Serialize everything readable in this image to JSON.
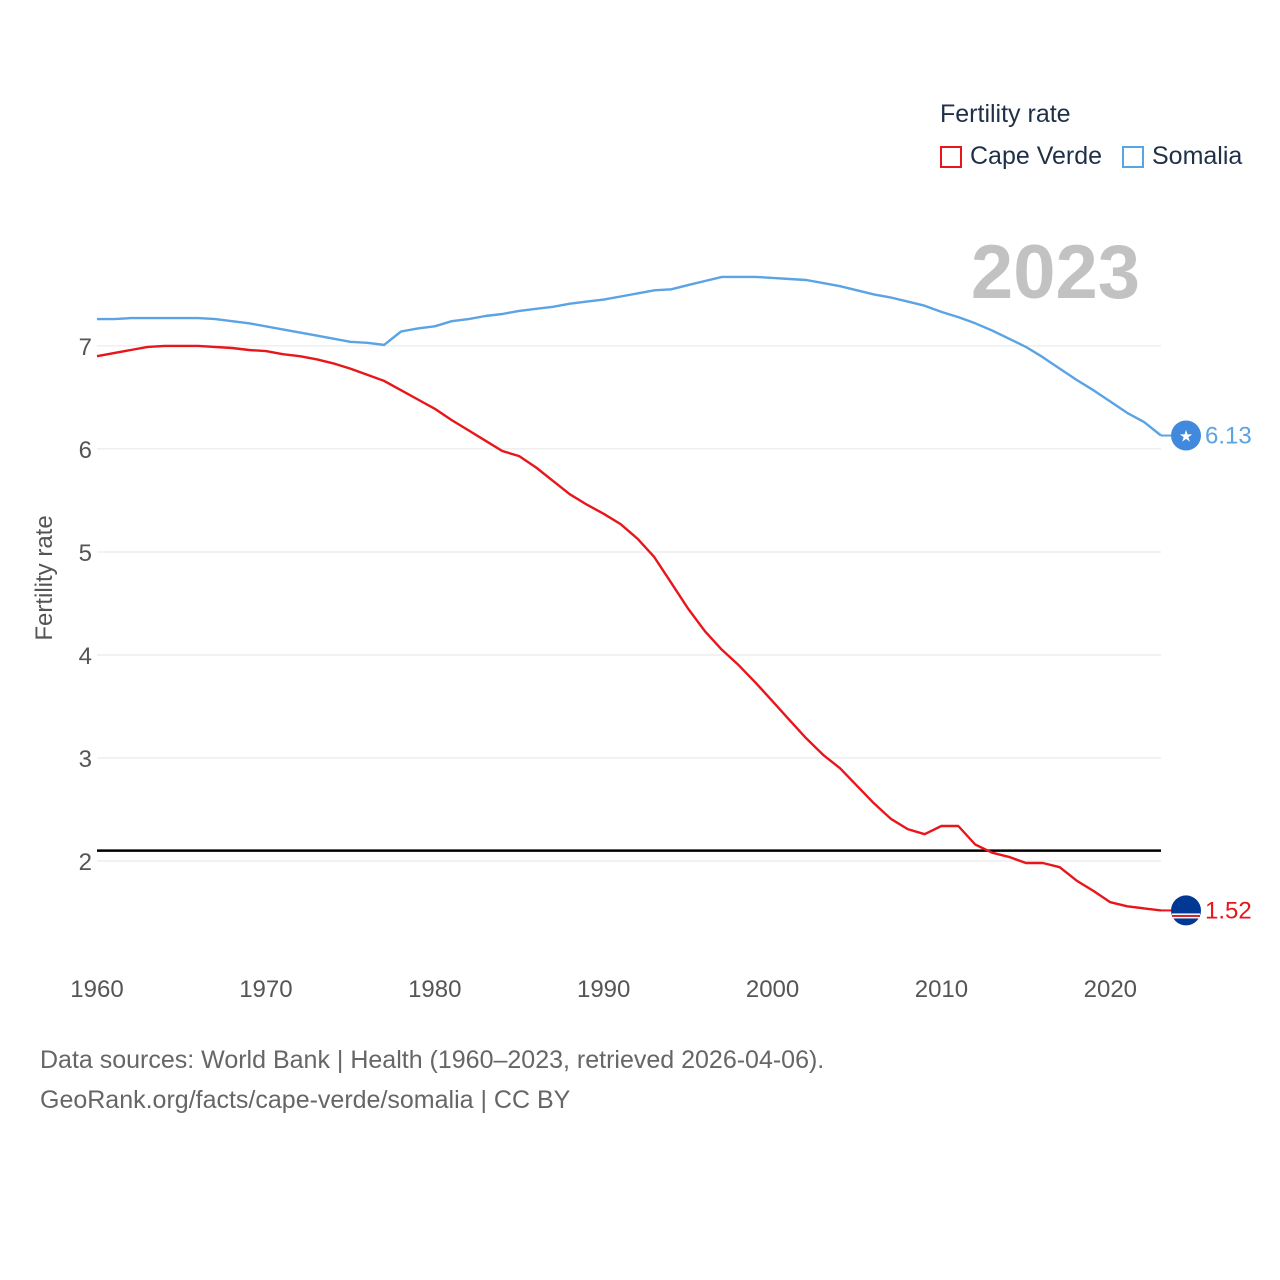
{
  "chart_data": {
    "type": "line",
    "ylabel": "Fertility rate",
    "year_label": "2023",
    "x_ticks": [
      1960,
      1970,
      1980,
      1990,
      2000,
      2010,
      2020
    ],
    "y_ticks": [
      2,
      3,
      4,
      5,
      6,
      7
    ],
    "xlim": [
      1960,
      2023
    ],
    "ylim": [
      1.0,
      8.3
    ],
    "reference_line": {
      "value": 2.1,
      "color": "#000000"
    },
    "legend": {
      "title": "Fertility rate",
      "placement": "top-right"
    },
    "series": [
      {
        "name": "Cape Verde",
        "color": "#e8161b",
        "end_label": "1.52",
        "x": [
          1960,
          1962,
          1963,
          1964,
          1966,
          1968,
          1969,
          1970,
          1971,
          1972,
          1973,
          1974,
          1975,
          1976,
          1977,
          1978,
          1979,
          1980,
          1981,
          1982,
          1983,
          1984,
          1985,
          1986,
          1987,
          1988,
          1989,
          1990,
          1991,
          1992,
          1993,
          1994,
          1995,
          1996,
          1997,
          1998,
          1999,
          2000,
          2001,
          2002,
          2003,
          2004,
          2005,
          2006,
          2007,
          2008,
          2009,
          2010,
          2011,
          2012,
          2013,
          2014,
          2015,
          2016,
          2017,
          2018,
          2019,
          2020,
          2021,
          2022,
          2023
        ],
        "y": [
          6.9,
          6.96,
          6.99,
          7.0,
          7.0,
          6.98,
          6.96,
          6.95,
          6.92,
          6.9,
          6.87,
          6.83,
          6.78,
          6.72,
          6.66,
          6.57,
          6.48,
          6.39,
          6.28,
          6.18,
          6.08,
          5.98,
          5.93,
          5.82,
          5.69,
          5.56,
          5.46,
          5.37,
          5.27,
          5.13,
          4.95,
          4.7,
          4.45,
          4.23,
          4.05,
          3.9,
          3.73,
          3.55,
          3.37,
          3.19,
          3.03,
          2.9,
          2.73,
          2.56,
          2.41,
          2.31,
          2.26,
          2.34,
          2.34,
          2.16,
          2.08,
          2.04,
          1.98,
          1.98,
          1.94,
          1.81,
          1.71,
          1.6,
          1.56,
          1.54,
          1.52
        ]
      },
      {
        "name": "Somalia",
        "color": "#5aa3e4",
        "end_label": "6.13",
        "x": [
          1960,
          1961,
          1962,
          1964,
          1966,
          1967,
          1969,
          1971,
          1973,
          1975,
          1976,
          1977,
          1978,
          1979,
          1980,
          1981,
          1982,
          1983,
          1984,
          1985,
          1986,
          1987,
          1988,
          1989,
          1990,
          1991,
          1992,
          1993,
          1994,
          1995,
          1996,
          1997,
          1998,
          1999,
          2000,
          2001,
          2002,
          2003,
          2004,
          2005,
          2006,
          2007,
          2008,
          2009,
          2010,
          2011,
          2012,
          2013,
          2014,
          2015,
          2016,
          2017,
          2018,
          2019,
          2020,
          2021,
          2022,
          2023
        ],
        "y": [
          7.26,
          7.26,
          7.27,
          7.27,
          7.27,
          7.26,
          7.22,
          7.16,
          7.1,
          7.04,
          7.03,
          7.01,
          7.14,
          7.17,
          7.19,
          7.24,
          7.26,
          7.29,
          7.31,
          7.34,
          7.36,
          7.38,
          7.41,
          7.43,
          7.45,
          7.48,
          7.51,
          7.54,
          7.55,
          7.59,
          7.63,
          7.67,
          7.67,
          7.67,
          7.66,
          7.65,
          7.64,
          7.61,
          7.58,
          7.54,
          7.5,
          7.47,
          7.43,
          7.39,
          7.33,
          7.28,
          7.22,
          7.15,
          7.07,
          6.99,
          6.89,
          6.78,
          6.67,
          6.57,
          6.46,
          6.35,
          6.26,
          6.13
        ]
      }
    ]
  },
  "footer": {
    "line1": "Data sources: World Bank | Health (1960–2023, retrieved 2026-04-06).",
    "line2": "GeoRank.org/facts/cape-verde/somalia | CC BY"
  }
}
